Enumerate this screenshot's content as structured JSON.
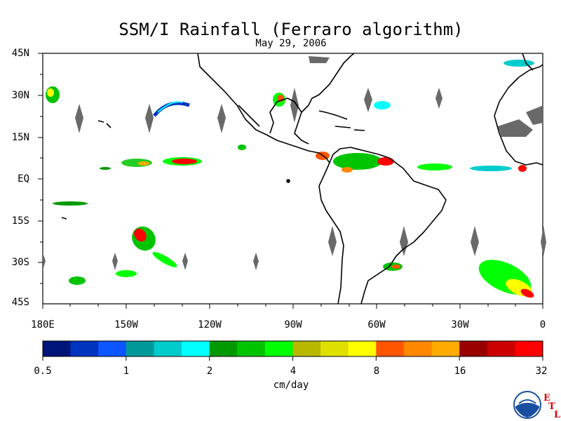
{
  "title": "SSM/I Rainfall (Ferraro algorithm)",
  "subtitle": "May 29, 2006",
  "lat_labels": [
    "45N",
    "30N",
    "15N",
    "EQ",
    "15S",
    "30S",
    "45S"
  ],
  "lon_labels": [
    "180E",
    "150W",
    "120W",
    "90W",
    "60W",
    "30W",
    "0"
  ],
  "colorbar": {
    "colors": [
      "#00157a",
      "#0033c0",
      "#0c55ff",
      "#009999",
      "#00cccc",
      "#00ffff",
      "#009900",
      "#00c400",
      "#00ff00",
      "#b8b800",
      "#e0e000",
      "#ffff00",
      "#ff5500",
      "#ff8800",
      "#ffaa00",
      "#990000",
      "#cc0000",
      "#ff0000"
    ],
    "tick_labels": [
      "0.5",
      "1",
      "2",
      "4",
      "8",
      "16",
      "32"
    ],
    "units": "cm/day"
  },
  "land_color": "#ffffff",
  "no_data_color": "#696969",
  "logo": {
    "name": "NOAA",
    "etl": [
      "E",
      "T",
      "L"
    ]
  }
}
